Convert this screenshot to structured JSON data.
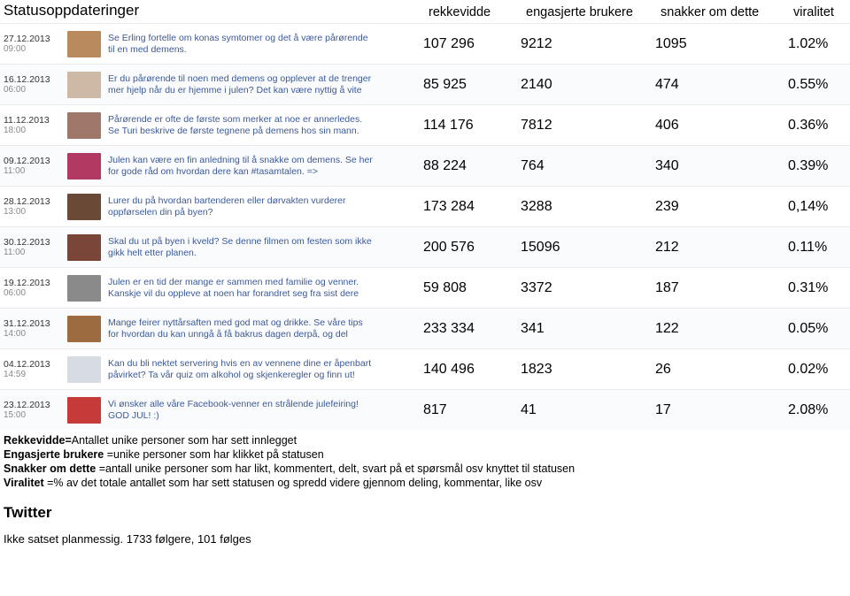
{
  "headers": {
    "status": "Statusoppdateringer",
    "reach": "rekkevidde",
    "engaged": "engasjerte brukere",
    "talking": "snakker om dette",
    "virality": "viralitet"
  },
  "rows": [
    {
      "date": "27.12.2013",
      "time": "09:00",
      "thumb_color": "#b88a5e",
      "line1": "Se Erling fortelle om konas symtomer og det å være pårørende",
      "line2": "til en med demens.",
      "reach": "107 296",
      "engaged": "9212",
      "talking": "1095",
      "virality": "1.02%"
    },
    {
      "date": "16.12.2013",
      "time": "06:00",
      "thumb_color": "#cdb9a6",
      "line1": "Er du pårørende til noen med demens og opplever at de trenger",
      "line2": "mer hjelp når du er hjemme i julen? Det kan være nyttig å vite",
      "reach": "85 925",
      "engaged": "2140",
      "talking": "474",
      "virality": "0.55%"
    },
    {
      "date": "11.12.2013",
      "time": "18:00",
      "thumb_color": "#a0786a",
      "line1": "Pårørende er ofte de første som merker at noe er annerledes.",
      "line2": "Se Turi beskrive de første tegnene på demens hos sin mann.",
      "reach": "114 176",
      "engaged": "7812",
      "talking": "406",
      "virality": "0.36%"
    },
    {
      "date": "09.12.2013",
      "time": "11:00",
      "thumb_color": "#b23a62",
      "line1": "Julen kan være en fin anledning til å snakke om demens. Se her",
      "line2": "for gode råd om hvordan dere kan #tasamtalen. =>",
      "reach": "88 224",
      "engaged": "764",
      "talking": "340",
      "virality": "0.39%"
    },
    {
      "date": "28.12.2013",
      "time": "13:00",
      "thumb_color": "#6a4a36",
      "line1": "Lurer du på hvordan bartenderen eller dørvakten vurderer",
      "line2": "oppførselen din på byen?",
      "reach": "173 284",
      "engaged": "3288",
      "talking": "239",
      "virality": "0,14%"
    },
    {
      "date": "30.12.2013",
      "time": "11:00",
      "thumb_color": "#7a463a",
      "line1": "Skal du ut på byen i kveld? Se denne filmen om festen som ikke",
      "line2": "gikk helt etter planen.",
      "reach": "200 576",
      "engaged": "15096",
      "talking": "212",
      "virality": "0.11%"
    },
    {
      "date": "19.12.2013",
      "time": "06:00",
      "thumb_color": "#8a8a8a",
      "line1": "Julen er en tid der mange er sammen med familie og venner.",
      "line2": "Kanskje vil du oppleve at noen har forandret seg fra sist dere",
      "reach": "59 808",
      "engaged": "3372",
      "talking": "187",
      "virality": "0.31%"
    },
    {
      "date": "31.12.2013",
      "time": "14:00",
      "thumb_color": "#9c6b40",
      "line1": "Mange feirer nyttårsaften med god mat og drikke. Se våre tips",
      "line2": "for hvordan du kan unngå å få bakrus dagen derpå, og del",
      "reach": "233 334",
      "engaged": "341",
      "talking": "122",
      "virality": "0.05%"
    },
    {
      "date": "04.12.2013",
      "time": "14:59",
      "thumb_color": "#d7dbe2",
      "line1": "Kan du bli nektet servering hvis en av vennene dine er åpenbart",
      "line2": "påvirket? Ta vår quiz om alkohol og skjenkeregler og finn ut!",
      "reach": "140 496",
      "engaged": "1823",
      "talking": "26",
      "virality": "0.02%"
    },
    {
      "date": "23.12.2013",
      "time": "15:00",
      "thumb_color": "#c73a3a",
      "line1": "Vi ønsker alle våre Facebook-venner en strålende julefeiring!",
      "line2": "GOD JUL! :)",
      "reach": "817",
      "engaged": "41",
      "talking": "17",
      "virality": "2.08%"
    }
  ],
  "defs": {
    "l1b": "Rekkevidde=",
    "l1": "Antallet unike personer som har sett innlegget",
    "l2b": "Engasjerte brukere ",
    "l2": "=unike personer som har klikket på statusen",
    "l3b": "Snakker om dette ",
    "l3": "=antall unike personer som har likt, kommentert, delt,  svart på et spørsmål osv knyttet til statusen",
    "l4b": "Viralitet ",
    "l4": "=% av det totale antallet som har sett statusen og spredd videre gjennom deling, kommentar, like osv"
  },
  "twitter": {
    "heading": "Twitter",
    "text": "Ikke satset planmessig. 1733 følgere, 101 følges"
  }
}
